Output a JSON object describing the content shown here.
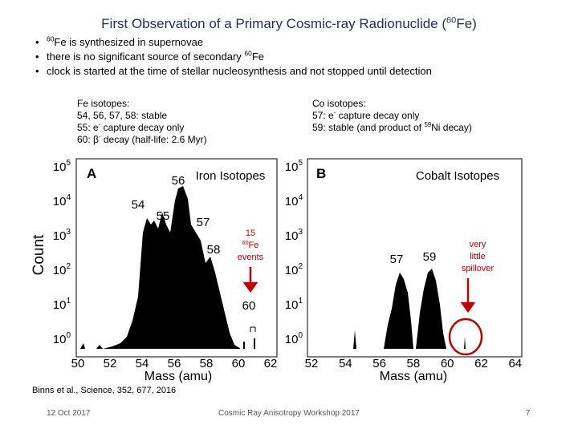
{
  "title": {
    "before": "First Observation of a Primary Cosmic-ray Radionuclide (",
    "sup": "60",
    "after": "Fe)"
  },
  "bullets": [
    {
      "before": "",
      "sup": "60",
      "after": "Fe is synthesized in supernovae"
    },
    {
      "before": "there is no significant source of secondary ",
      "sup": "60",
      "after": "Fe"
    },
    {
      "before": "clock is started at the time of stellar nucleosynthesis and not stopped until detection",
      "sup": "",
      "after": ""
    }
  ],
  "fe_isotopes": {
    "heading": "Fe isotopes:",
    "lines": [
      {
        "before": "54, 56, 57, 58:  stable",
        "sup": "",
        "after": ""
      },
      {
        "before": "55:  e",
        "sup": "-",
        "after": " capture decay only"
      },
      {
        "before": "60:  β",
        "sup": "-",
        "after": " decay (half-life: 2.6 Myr)"
      }
    ]
  },
  "co_isotopes": {
    "heading": "Co isotopes:",
    "lines": [
      {
        "before": "57:  e",
        "sup": "-",
        "after": " capture decay only"
      },
      {
        "before": "59:  stable (and product of ",
        "sup": "59",
        "after": "Ni decay)"
      }
    ]
  },
  "figure": {
    "y_axis_label": "Count",
    "x_axis_label": "Mass (amu)",
    "y_ticks": [
      {
        "base": "10",
        "exp": "0"
      },
      {
        "base": "10",
        "exp": "1"
      },
      {
        "base": "10",
        "exp": "2"
      },
      {
        "base": "10",
        "exp": "3"
      },
      {
        "base": "10",
        "exp": "4"
      },
      {
        "base": "10",
        "exp": "5"
      }
    ],
    "panel_a": {
      "letter": "A",
      "title": "Iron Isotopes",
      "x_ticks": [
        "50",
        "52",
        "54",
        "56",
        "58",
        "60",
        "62"
      ],
      "peak_labels": [
        "54",
        "55",
        "56",
        "57",
        "58",
        "60"
      ]
    },
    "panel_b": {
      "letter": "B",
      "title": "Cobalt Isotopes",
      "x_ticks": [
        "52",
        "54",
        "56",
        "58",
        "60",
        "62",
        "64"
      ],
      "peak_labels": [
        "57",
        "59"
      ]
    }
  },
  "annotation_fe": {
    "line1": "15",
    "sup": "60",
    "after": "Fe",
    "line3": "events"
  },
  "annotation_co": [
    "very",
    "little",
    "spillover"
  ],
  "citation": "Binns et al., Science, 352, 677, 2016",
  "footer": {
    "date": "12 Oct 2017",
    "center": "Cosmic Ray Anisotropy Workshop 2017",
    "page": "7"
  }
}
